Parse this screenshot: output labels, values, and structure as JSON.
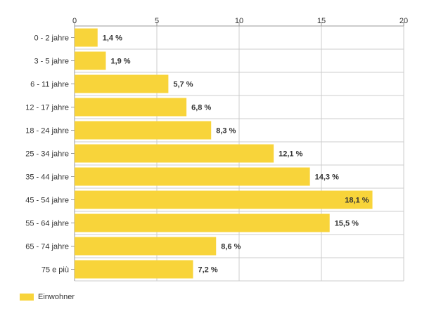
{
  "chart_data": {
    "type": "bar",
    "orientation": "horizontal",
    "categories": [
      "0 - 2 jahre",
      "3 - 5 jahre",
      "6 - 11 jahre",
      "12 - 17 jahre",
      "18 - 24 jahre",
      "25 - 34 jahre",
      "35 - 44 jahre",
      "45 - 54 jahre",
      "55 - 64 jahre",
      "65 - 74 jahre",
      "75 e più"
    ],
    "series": [
      {
        "name": "Einwohner",
        "values": [
          1.4,
          1.9,
          5.7,
          6.8,
          8.3,
          12.1,
          14.3,
          18.1,
          15.5,
          8.6,
          7.2
        ],
        "labels": [
          "1,4 %",
          "1,9 %",
          "5,7 %",
          "6,8 %",
          "8,3 %",
          "12,1 %",
          "14,3 %",
          "18,1 %",
          "15,5 %",
          "8,6 %",
          "7,2 %"
        ],
        "color": "#f8d43a"
      }
    ],
    "xticks": [
      "0",
      "5",
      "10",
      "15",
      "20"
    ],
    "xlim": [
      0,
      20
    ],
    "grid": true,
    "xaxis_position": "top",
    "legend_position": "bottom-left",
    "title": "",
    "xlabel": "",
    "ylabel": ""
  }
}
